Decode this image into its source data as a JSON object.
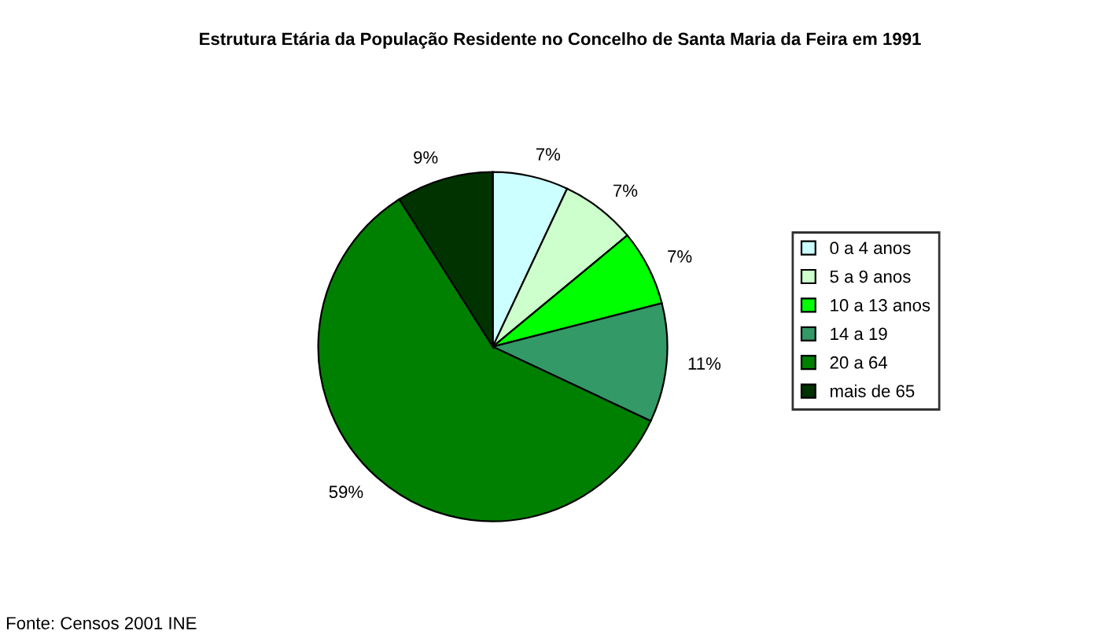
{
  "chart_data": {
    "type": "pie",
    "title": "Estrutura Etária da População Residente no Concelho de Santa Maria da Feira em 1991",
    "categories": [
      "0 a 4 anos",
      "5 a 9 anos",
      "10 a 13 anos",
      "14 a 19",
      "20 a 64",
      "mais de 65"
    ],
    "values": [
      7,
      7,
      7,
      11,
      59,
      9
    ],
    "value_labels": [
      "7%",
      "7%",
      "7%",
      "11%",
      "59%",
      "9%"
    ],
    "colors": [
      "#ccffff",
      "#ccffcc",
      "#00ff00",
      "#339966",
      "#008000",
      "#003300"
    ],
    "legend": "right",
    "annotations": [
      "Fonte: Censos 2001 INE"
    ]
  }
}
